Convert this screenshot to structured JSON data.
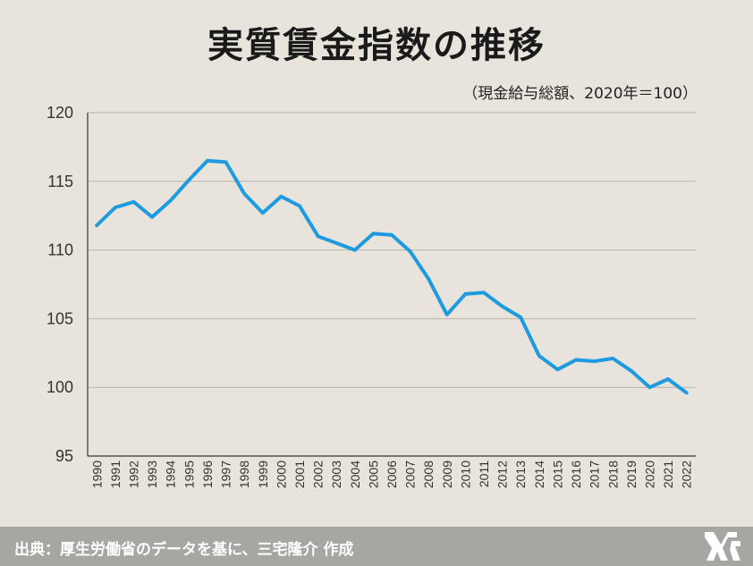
{
  "chart_data": {
    "type": "line",
    "title": "実質賃金指数の推移",
    "subtitle": "（現金給与総額、2020年＝100）",
    "xlabel": "",
    "ylabel": "",
    "ylim": [
      95,
      120
    ],
    "yticks": [
      95,
      100,
      105,
      110,
      115,
      120
    ],
    "grid": true,
    "categories": [
      "1990",
      "1991",
      "1992",
      "1993",
      "1994",
      "1995",
      "1996",
      "1997",
      "1998",
      "1999",
      "2000",
      "2001",
      "2002",
      "2003",
      "2004",
      "2005",
      "2006",
      "2007",
      "2008",
      "2009",
      "2010",
      "2011",
      "2012",
      "2013",
      "2014",
      "2015",
      "2016",
      "2017",
      "2018",
      "2019",
      "2020",
      "2021",
      "2022"
    ],
    "series": [
      {
        "color": "#1e9be0",
        "values": [
          111.8,
          113.1,
          113.5,
          112.4,
          113.6,
          115.1,
          116.5,
          116.4,
          114.1,
          112.7,
          113.9,
          113.2,
          111.0,
          110.5,
          110.0,
          111.2,
          111.1,
          109.9,
          107.9,
          105.3,
          106.8,
          106.9,
          105.9,
          105.1,
          102.3,
          101.3,
          102.0,
          101.9,
          102.1,
          101.2,
          100.0,
          100.6,
          99.6
        ]
      }
    ]
  },
  "footer": {
    "source": "出典：厚生労働省のデータを基に、三宅隆介 作成"
  },
  "logo": {
    "icon": "mr-logo-icon"
  }
}
